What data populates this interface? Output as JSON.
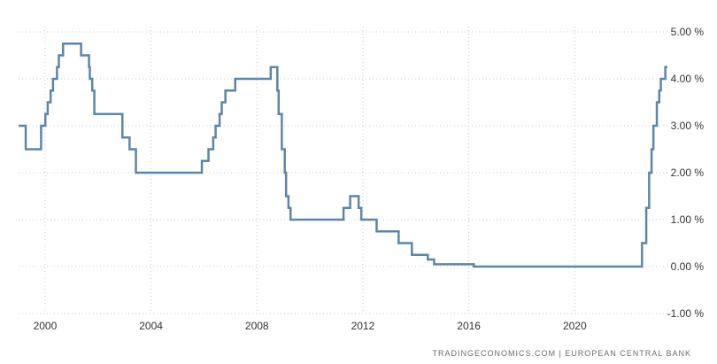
{
  "chart_data": {
    "type": "line",
    "title": "",
    "xlabel": "",
    "ylabel": "",
    "xlim": [
      1999.0,
      2023.6
    ],
    "ylim": [
      -1.0,
      5.0
    ],
    "grid": true,
    "y_ticks": [
      {
        "value": 5,
        "label": "5.00 %"
      },
      {
        "value": 4,
        "label": "4.00 %"
      },
      {
        "value": 3,
        "label": "3.00 %"
      },
      {
        "value": 2,
        "label": "2.00 %"
      },
      {
        "value": 1,
        "label": "1.00 %"
      },
      {
        "value": 0,
        "label": "0.00 %"
      },
      {
        "value": -1,
        "label": "-1.00 %"
      }
    ],
    "x_ticks": [
      {
        "value": 2000,
        "label": "2000"
      },
      {
        "value": 2004,
        "label": "2004"
      },
      {
        "value": 2008,
        "label": "2008"
      },
      {
        "value": 2012,
        "label": "2012"
      },
      {
        "value": 2016,
        "label": "2016"
      },
      {
        "value": 2020,
        "label": "2020"
      }
    ],
    "series": [
      {
        "color": "#5b86a8",
        "step": true,
        "x": [
          1999.0,
          1999.27,
          1999.85,
          2000.01,
          2000.1,
          2000.21,
          2000.3,
          2000.45,
          2000.52,
          2000.68,
          2000.77,
          2000.85,
          2001.36,
          2001.66,
          2001.69,
          2001.78,
          2001.86,
          2002.92,
          2003.19,
          2003.43,
          2003.5,
          2005.92,
          2006.17,
          2006.35,
          2006.44,
          2006.59,
          2006.67,
          2006.81,
          2006.96,
          2007.18,
          2007.45,
          2008.52,
          2008.77,
          2008.82,
          2008.94,
          2009.05,
          2009.1,
          2009.19,
          2009.27,
          2009.34,
          2009.4,
          2011.27,
          2011.52,
          2011.84,
          2011.94,
          2012.52,
          2013.35,
          2013.85,
          2014.45,
          2014.69,
          2016.19,
          2022.54,
          2022.7,
          2022.81,
          2022.9,
          2022.97,
          2023.1,
          2023.19,
          2023.25,
          2023.42,
          2023.5
        ],
        "values": [
          3.0,
          2.5,
          3.0,
          3.25,
          3.5,
          3.75,
          4.0,
          4.25,
          4.5,
          4.75,
          4.75,
          4.75,
          4.5,
          4.25,
          4.0,
          3.75,
          3.25,
          2.75,
          2.5,
          2.0,
          2.0,
          2.25,
          2.5,
          2.75,
          3.0,
          3.25,
          3.5,
          3.75,
          3.75,
          4.0,
          4.0,
          4.25,
          3.75,
          3.25,
          2.5,
          2.0,
          1.5,
          1.25,
          1.0,
          1.0,
          1.0,
          1.25,
          1.5,
          1.25,
          1.0,
          0.75,
          0.5,
          0.25,
          0.15,
          0.05,
          0.0,
          0.5,
          1.25,
          2.0,
          2.5,
          3.0,
          3.5,
          3.75,
          4.0,
          4.25,
          4.25
        ]
      }
    ]
  },
  "source_text": "TRADINGECONOMICS.COM  |  EUROPEAN CENTRAL BANK"
}
